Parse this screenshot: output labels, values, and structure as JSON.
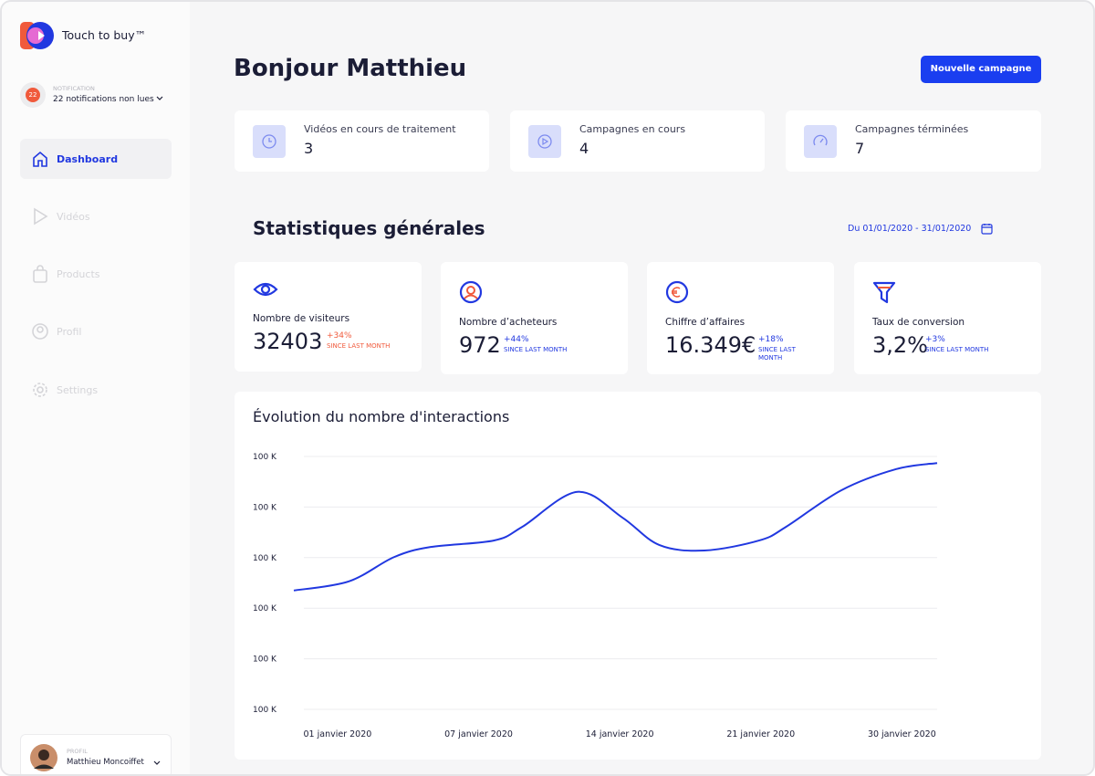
{
  "sidebar": {
    "brand": "Touch to buy™",
    "notification": {
      "badge": "22",
      "label": "NOTIFICATION",
      "text": "22 notifications non lues"
    },
    "nav": [
      "Dashboard",
      "Vidéos",
      "Products",
      "Profil",
      "Settings"
    ],
    "profile": {
      "label": "PROFIL",
      "name": "Matthieu Moncoiffet"
    }
  },
  "header": {
    "title": "Bonjour Matthieu",
    "button": "Nouvelle campagne"
  },
  "summary": [
    {
      "label": "Vidéos en cours de traitement",
      "value": 3
    },
    {
      "label": "Campagnes en cours",
      "value": 4
    },
    {
      "label": "Campagnes términées",
      "value": 7
    }
  ],
  "stats": {
    "title": "Statistiques générales",
    "date_range": "Du 01/01/2020 - 31/01/2020",
    "cards": [
      {
        "label": "Nombre de visiteurs",
        "value": 32403,
        "change": "+34%",
        "note": "SINCE LAST MONTH"
      },
      {
        "label": "Nombre d’acheteurs",
        "value": 972,
        "change": "+44%",
        "note": "SINCE LAST MONTH"
      },
      {
        "label": "Chiffre d’affaires",
        "value": "16.349€",
        "change": "+18%",
        "note": "SINCE LAST MONTH"
      },
      {
        "label": "Taux de conversion",
        "value": "3,2%",
        "change": "+3%",
        "note": "SINCE LAST MONTH"
      }
    ]
  },
  "chart_data": {
    "type": "line",
    "title": "Évolution du nombre d'interactions",
    "x": [
      -0.31,
      0.08,
      0.4,
      0.66,
      1.11,
      1.31,
      1.7,
      2.02,
      2.28,
      2.6,
      2.99,
      3.18,
      3.57,
      3.96,
      4.25
    ],
    "series": [
      {
        "color": "#2138e0",
        "values": [
          2.35,
          2.53,
          3.01,
          3.21,
          3.34,
          3.61,
          4.3,
          3.79,
          3.25,
          3.14,
          3.34,
          3.61,
          4.33,
          4.75,
          4.87
        ]
      }
    ],
    "xlim": [
      -0.31,
      4.25
    ],
    "ylim": [
      0,
      5
    ],
    "xticks": [
      {
        "value": 0,
        "label": "01 janvier 2020"
      },
      {
        "value": 1,
        "label": "07 janvier 2020"
      },
      {
        "value": 2,
        "label": "14 janvier 2020"
      },
      {
        "value": 3,
        "label": "21 janvier 2020"
      },
      {
        "value": 4,
        "label": "30 janvier 2020"
      }
    ],
    "yticks": [
      {
        "value": 5,
        "label": "100 K"
      },
      {
        "value": 4,
        "label": "100 K"
      },
      {
        "value": 3,
        "label": "100 K"
      },
      {
        "value": 2,
        "label": "100 K"
      },
      {
        "value": 1,
        "label": "100 K"
      },
      {
        "value": 0,
        "label": "100 K"
      }
    ],
    "grid": true
  }
}
